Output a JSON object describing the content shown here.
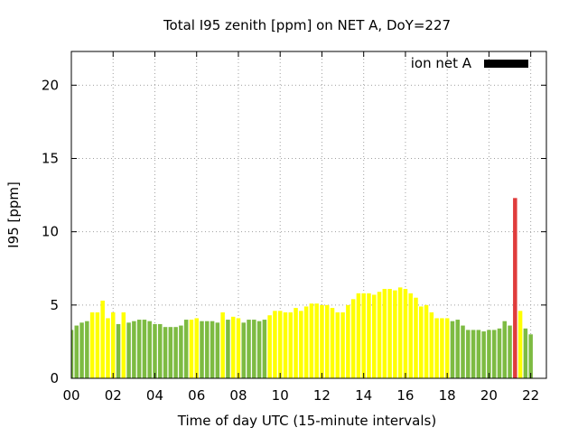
{
  "chart_data": {
    "type": "bar",
    "title": "Total I95 zenith [ppm] on NET A, DoY=227",
    "xlabel": "Time of day UTC (15-minute intervals)",
    "ylabel": "I95 [ppm]",
    "xlim": [
      0,
      22.75
    ],
    "ylim": [
      0,
      22.3
    ],
    "x_ticks": [
      0,
      2,
      4,
      6,
      8,
      10,
      12,
      14,
      16,
      18,
      20,
      22
    ],
    "x_tick_labels": [
      "00",
      "02",
      "04",
      "06",
      "08",
      "10",
      "12",
      "14",
      "16",
      "18",
      "20",
      "22"
    ],
    "y_ticks": [
      0,
      5,
      10,
      15,
      20
    ],
    "y_tick_labels": [
      "0",
      "5",
      "10",
      "15",
      "20"
    ],
    "grid": true,
    "legend": {
      "placement": "top-right",
      "entries": [
        {
          "label": "ion net A",
          "color": "#000000"
        }
      ]
    },
    "colors": {
      "green": "#7dbb42",
      "yellow": "#ffff00",
      "red": "#e03c3c"
    },
    "interval_hours": 0.25,
    "series": [
      {
        "values": [
          3.3,
          3.6,
          3.8,
          3.9,
          4.5,
          4.5,
          5.3,
          4.1,
          4.5,
          3.7,
          4.5,
          3.8,
          3.9,
          4.0,
          4.0,
          3.9,
          3.7,
          3.7,
          3.5,
          3.5,
          3.5,
          3.6,
          4.0,
          4.0,
          4.1,
          3.9,
          3.9,
          3.9,
          3.8,
          4.5,
          4.0,
          4.2,
          4.1,
          3.8,
          4.0,
          4.0,
          3.9,
          4.0,
          4.3,
          4.6,
          4.6,
          4.5,
          4.5,
          4.8,
          4.6,
          4.9,
          5.1,
          5.1,
          5.0,
          5.0,
          4.8,
          4.5,
          4.5,
          5.0,
          5.4,
          5.8,
          5.8,
          5.8,
          5.7,
          5.9,
          6.1,
          6.1,
          6.0,
          6.2,
          6.1,
          5.8,
          5.5,
          4.9,
          5.0,
          4.5,
          4.1,
          4.1,
          4.1,
          3.9,
          4.0,
          3.6,
          3.3,
          3.3,
          3.3,
          3.2,
          3.3,
          3.3,
          3.4,
          3.9,
          3.6,
          12.3,
          4.6,
          3.4,
          3.0
        ],
        "classes": [
          "green",
          "green",
          "green",
          "green",
          "yellow",
          "yellow",
          "yellow",
          "yellow",
          "yellow",
          "green",
          "yellow",
          "green",
          "green",
          "green",
          "green",
          "green",
          "green",
          "green",
          "green",
          "green",
          "green",
          "green",
          "green",
          "yellow",
          "yellow",
          "green",
          "green",
          "green",
          "green",
          "yellow",
          "green",
          "yellow",
          "yellow",
          "green",
          "green",
          "green",
          "green",
          "green",
          "yellow",
          "yellow",
          "yellow",
          "yellow",
          "yellow",
          "yellow",
          "yellow",
          "yellow",
          "yellow",
          "yellow",
          "yellow",
          "yellow",
          "yellow",
          "yellow",
          "yellow",
          "yellow",
          "yellow",
          "yellow",
          "yellow",
          "yellow",
          "yellow",
          "yellow",
          "yellow",
          "yellow",
          "yellow",
          "yellow",
          "yellow",
          "yellow",
          "yellow",
          "yellow",
          "yellow",
          "yellow",
          "yellow",
          "yellow",
          "yellow",
          "green",
          "green",
          "green",
          "green",
          "green",
          "green",
          "green",
          "green",
          "green",
          "green",
          "green",
          "green",
          "red",
          "yellow",
          "green",
          "green"
        ]
      }
    ]
  }
}
